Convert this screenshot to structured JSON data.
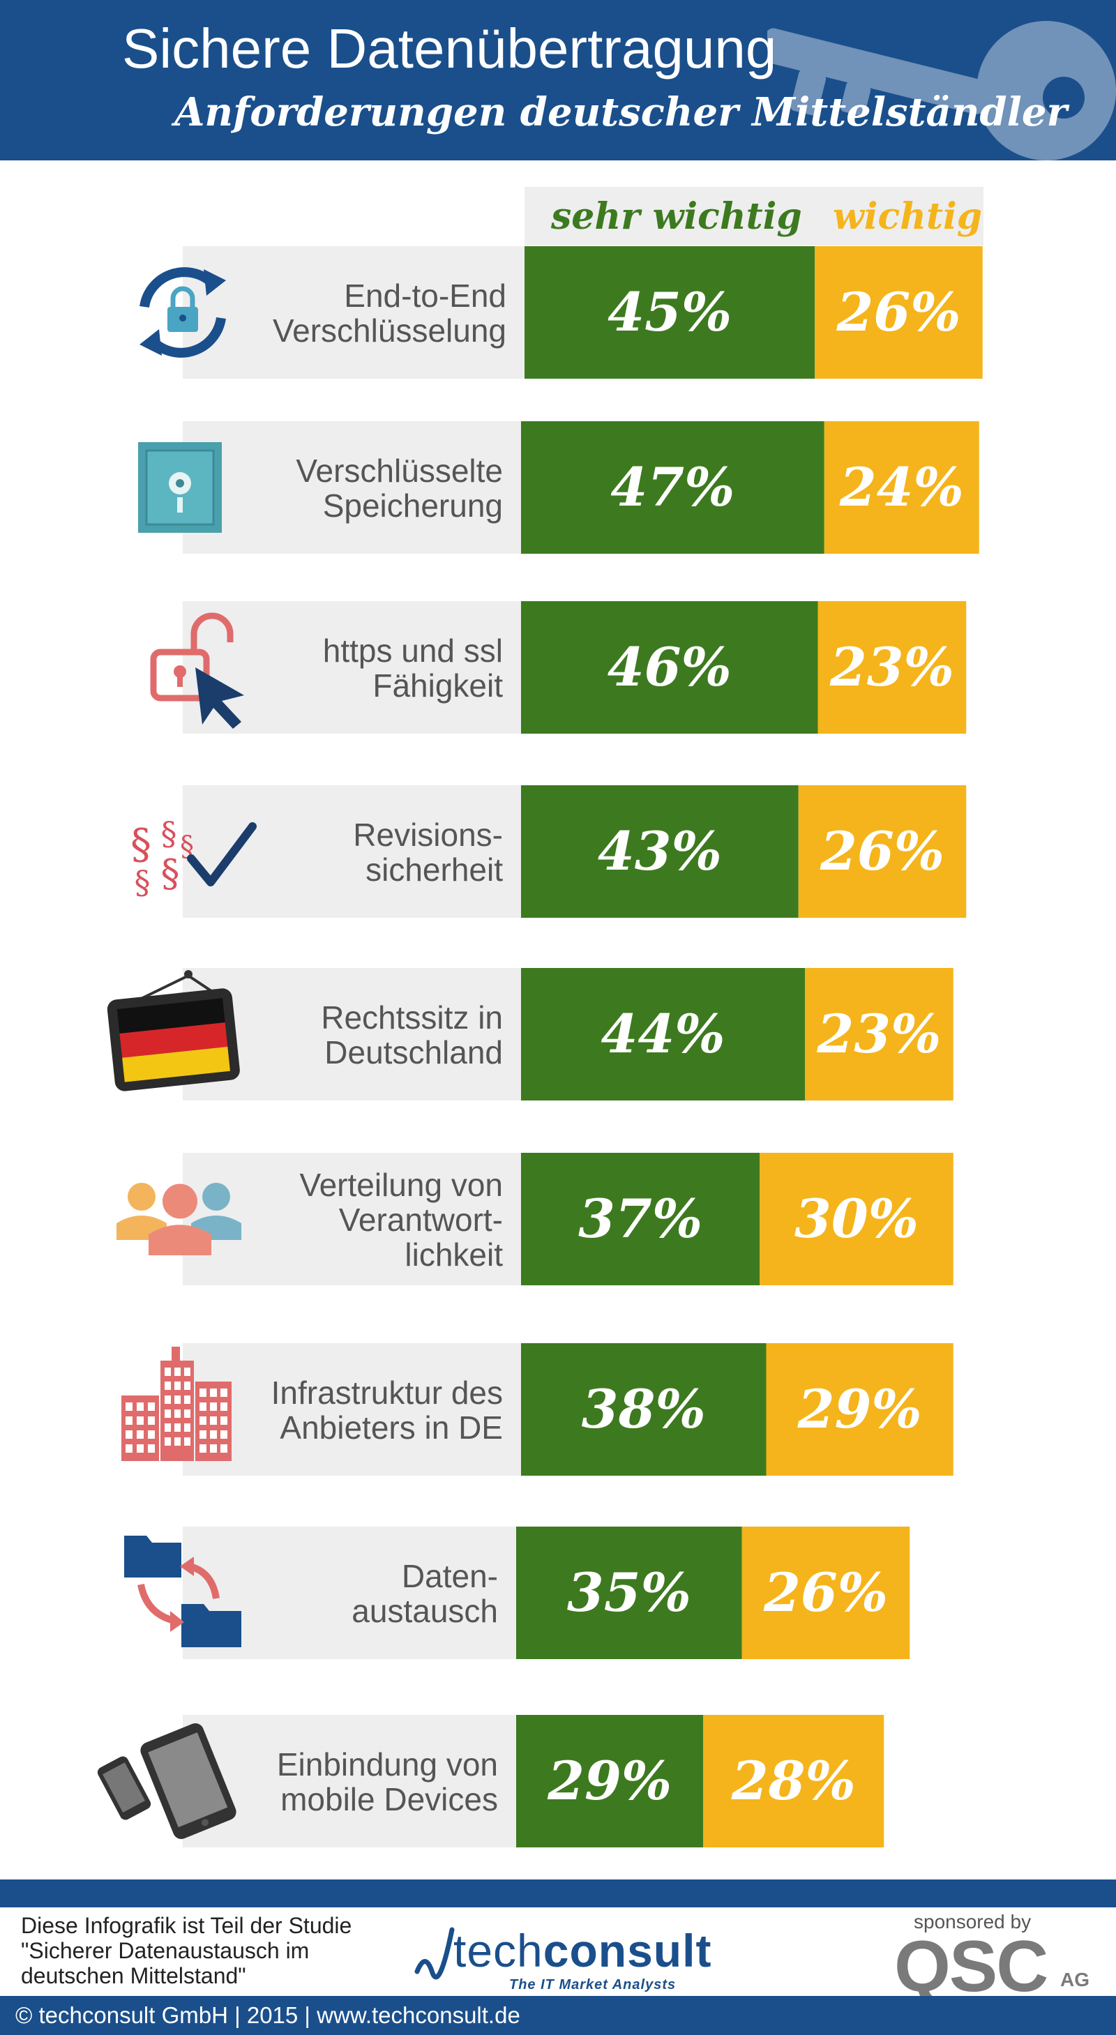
{
  "title": "Sichere Datenübertragung",
  "subtitle": "Anforderungen deutscher Mittelständler",
  "colors": {
    "header": "#1a4f8b",
    "sehr_wichtig": "#3d7a1f",
    "wichtig": "#f5b41b",
    "row_bg": "#eeeeee",
    "label": "#555555"
  },
  "chart_data": {
    "type": "bar",
    "stacked": true,
    "orientation": "horizontal",
    "categories": [
      "End-to-End\nVerschlüsselung",
      "Verschlüsselte\nSpeicherung",
      "https und ssl\nFähigkeit",
      "Revisions-\nsicherheit",
      "Rechtssitz in\nDeutschland",
      "Verteilung von\nVerantwort-\nlichkeit",
      "Infrastruktur des\nAnbieters in DE",
      "Daten-\naustausch",
      "Einbindung von\nmobile Devices"
    ],
    "icons": [
      "lock-sync-icon",
      "safe-icon",
      "open-padlock-cursor-icon",
      "paragraph-check-icon",
      "german-flag-sign-icon",
      "people-group-icon",
      "buildings-icon",
      "folder-exchange-icon",
      "mobile-devices-icon"
    ],
    "series": [
      {
        "name": "sehr wichtig",
        "values": [
          45,
          47,
          46,
          43,
          44,
          37,
          38,
          35,
          29
        ],
        "labels": [
          "45%",
          "47%",
          "46%",
          "43%",
          "44%",
          "37%",
          "38%",
          "35%",
          "29%"
        ]
      },
      {
        "name": "wichtig",
        "values": [
          26,
          24,
          23,
          26,
          23,
          30,
          29,
          26,
          28
        ],
        "labels": [
          "26%",
          "24%",
          "23%",
          "26%",
          "23%",
          "30%",
          "29%",
          "26%",
          "28%"
        ]
      }
    ],
    "legend_position": "top"
  },
  "footer": {
    "study_text": "Diese Infografik ist Teil der Studie\n\"Sicherer Datenaustausch im\ndeutschen Mittelstand\"",
    "logo_prefix": "tech",
    "logo_bold": "consult",
    "logo_tagline": "The IT Market Analysts",
    "sponsored_by": "sponsored by",
    "sponsor_name": "QSC",
    "sponsor_suffix": "AG",
    "copyright": "© techconsult GmbH | 2015 | www.techconsult.de"
  }
}
